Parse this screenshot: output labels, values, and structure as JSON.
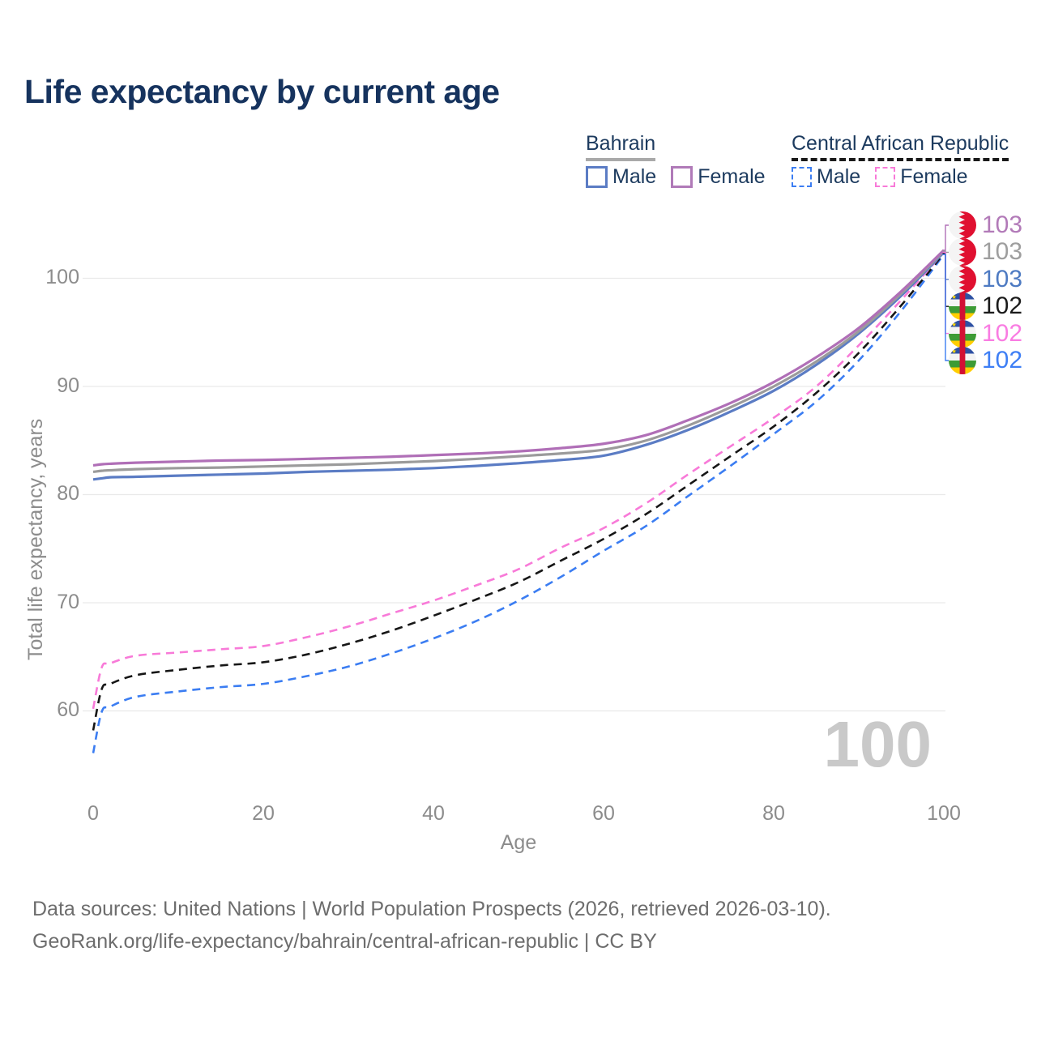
{
  "title": "Life expectancy by current age",
  "legend": {
    "groups": [
      {
        "name": "Bahrain",
        "line_style": "solid",
        "underline_color": "#a9a9a9",
        "items": [
          {
            "label": "Male",
            "color": "#5b7cc4"
          },
          {
            "label": "Female",
            "color": "#b07ab8"
          }
        ]
      },
      {
        "name": "Central African Republic",
        "line_style": "dashed",
        "underline_color": "#1a1a1a",
        "items": [
          {
            "label": "Male",
            "color": "#3b7df2"
          },
          {
            "label": "Female",
            "color": "#f87ad8"
          }
        ]
      }
    ]
  },
  "watermark": "100",
  "chart_data": {
    "type": "line",
    "title": "Life expectancy by current age",
    "xlabel": "Age",
    "ylabel": "Total life expectancy, years",
    "xlim": [
      0,
      100
    ],
    "ylim": [
      55,
      105
    ],
    "x_ticks": [
      0,
      20,
      40,
      60,
      80,
      100
    ],
    "y_ticks": [
      60,
      70,
      80,
      90,
      100
    ],
    "grid": "horizontal",
    "gridline_color": "#e9e9e9",
    "x": [
      0,
      1,
      2,
      5,
      10,
      15,
      20,
      25,
      30,
      35,
      40,
      45,
      50,
      55,
      60,
      65,
      70,
      75,
      80,
      85,
      90,
      95,
      100
    ],
    "series": [
      {
        "name": "Central African Republic Male",
        "country": "Central African Republic",
        "sex": "Male",
        "color": "#3b7df2",
        "dashed": true,
        "values": [
          56.1,
          59.9,
          60.4,
          61.3,
          61.8,
          62.2,
          62.5,
          63.2,
          64.1,
          65.3,
          66.7,
          68.3,
          70.2,
          72.4,
          74.8,
          77.1,
          79.9,
          82.7,
          85.6,
          88.6,
          92.4,
          97.0,
          102.2
        ],
        "end_label": "102"
      },
      {
        "name": "Central African Republic Total",
        "country": "Central African Republic",
        "sex": "Both",
        "color": "#161616",
        "dashed": true,
        "values": [
          58.2,
          62.0,
          62.5,
          63.3,
          63.8,
          64.2,
          64.5,
          65.2,
          66.2,
          67.4,
          68.8,
          70.3,
          71.9,
          73.9,
          75.9,
          78.2,
          80.9,
          83.6,
          86.3,
          89.4,
          93.1,
          97.5,
          102.3
        ],
        "end_label": "102"
      },
      {
        "name": "Central African Republic Female",
        "country": "Central African Republic",
        "sex": "Female",
        "color": "#f87ad8",
        "dashed": true,
        "values": [
          60.2,
          64.0,
          64.4,
          65.1,
          65.4,
          65.7,
          66.0,
          66.8,
          67.8,
          69.0,
          70.2,
          71.6,
          73.1,
          75.1,
          76.9,
          79.2,
          81.9,
          84.5,
          87.1,
          90.0,
          93.8,
          98.0,
          102.4
        ],
        "end_label": "102"
      },
      {
        "name": "Bahrain Male",
        "country": "Bahrain",
        "sex": "Male",
        "color": "#5b7cc4",
        "dashed": false,
        "values": [
          81.4,
          81.5,
          81.6,
          81.65,
          81.75,
          81.85,
          81.95,
          82.1,
          82.2,
          82.3,
          82.45,
          82.65,
          82.9,
          83.2,
          83.6,
          84.6,
          86.0,
          87.7,
          89.6,
          92.0,
          94.9,
          98.4,
          102.4
        ],
        "end_label": "103"
      },
      {
        "name": "Bahrain Total",
        "country": "Bahrain",
        "sex": "Both",
        "color": "#9b9b9b",
        "dashed": false,
        "values": [
          82.1,
          82.2,
          82.25,
          82.35,
          82.45,
          82.5,
          82.6,
          82.7,
          82.8,
          82.95,
          83.1,
          83.3,
          83.55,
          83.8,
          84.15,
          85.0,
          86.4,
          88.1,
          90.0,
          92.3,
          95.1,
          98.6,
          102.5
        ],
        "end_label": "103"
      },
      {
        "name": "Bahrain Female",
        "country": "Bahrain",
        "sex": "Female",
        "color": "#b06fb7",
        "dashed": false,
        "values": [
          82.7,
          82.8,
          82.85,
          82.95,
          83.05,
          83.15,
          83.2,
          83.3,
          83.4,
          83.5,
          83.65,
          83.8,
          84.0,
          84.3,
          84.7,
          85.5,
          86.9,
          88.5,
          90.4,
          92.7,
          95.4,
          98.8,
          102.6
        ],
        "end_label": "103"
      }
    ]
  },
  "end_labels": [
    {
      "series": "Bahrain Female",
      "value": "103",
      "color": "#b27ab8",
      "flag": "bahrain"
    },
    {
      "series": "Bahrain Total",
      "value": "103",
      "color": "#9e9e9e",
      "flag": "bahrain"
    },
    {
      "series": "Bahrain Male",
      "value": "103",
      "color": "#4d7ac2",
      "flag": "bahrain"
    },
    {
      "series": "Central African Republic Total",
      "value": "102",
      "color": "#1a1a1a",
      "flag": "central-african-republic"
    },
    {
      "series": "Central African Republic Female",
      "value": "102",
      "color": "#f97ce2",
      "flag": "central-african-republic"
    },
    {
      "series": "Central African Republic Male",
      "value": "102",
      "color": "#3d7ef5",
      "flag": "central-african-republic"
    }
  ],
  "footer": {
    "line1": "Data sources: United Nations | World Population Prospects (2026, retrieved 2026-03-10).",
    "line2": "GeoRank.org/life-expectancy/bahrain/central-african-republic | CC BY"
  }
}
